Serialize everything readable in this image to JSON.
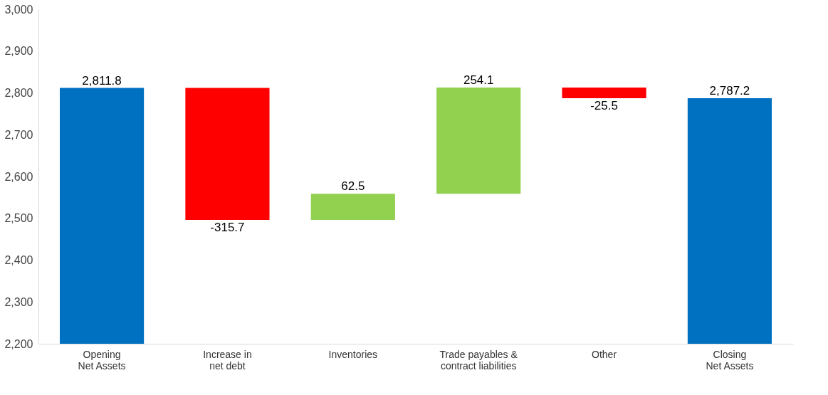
{
  "chart_data": {
    "type": "bar",
    "categories": [
      "Opening\nNet Assets",
      "Increase in\nnet debt",
      "Inventories",
      "Trade payables &\ncontract liabilities",
      "Other",
      "Closing\nNet Assets"
    ],
    "base": [
      2200,
      2811.8,
      2496.1,
      2558.6,
      2812.7,
      2200
    ],
    "values": [
      611.8,
      -315.7,
      62.5,
      254.1,
      -25.5,
      587.2
    ],
    "colors": [
      "#0070c0",
      "#ff0000",
      "#92d050",
      "#92d050",
      "#ff0000",
      "#0070c0"
    ],
    "value_labels": [
      "2,811.8",
      "-315.7",
      "62.5",
      "254.1",
      "-25.5",
      "2,787.2"
    ],
    "ylim": [
      2200,
      3000
    ],
    "yticks": [
      {
        "value": 2200,
        "label": "2,200"
      },
      {
        "value": 2300,
        "label": "2,300"
      },
      {
        "value": 2400,
        "label": "2,400"
      },
      {
        "value": 2500,
        "label": "2,500"
      },
      {
        "value": 2600,
        "label": "2,600"
      },
      {
        "value": 2700,
        "label": "2,700"
      },
      {
        "value": 2800,
        "label": "2,800"
      },
      {
        "value": 2900,
        "label": "2,900"
      },
      {
        "value": 3000,
        "label": "3,000"
      }
    ],
    "grid": false
  }
}
